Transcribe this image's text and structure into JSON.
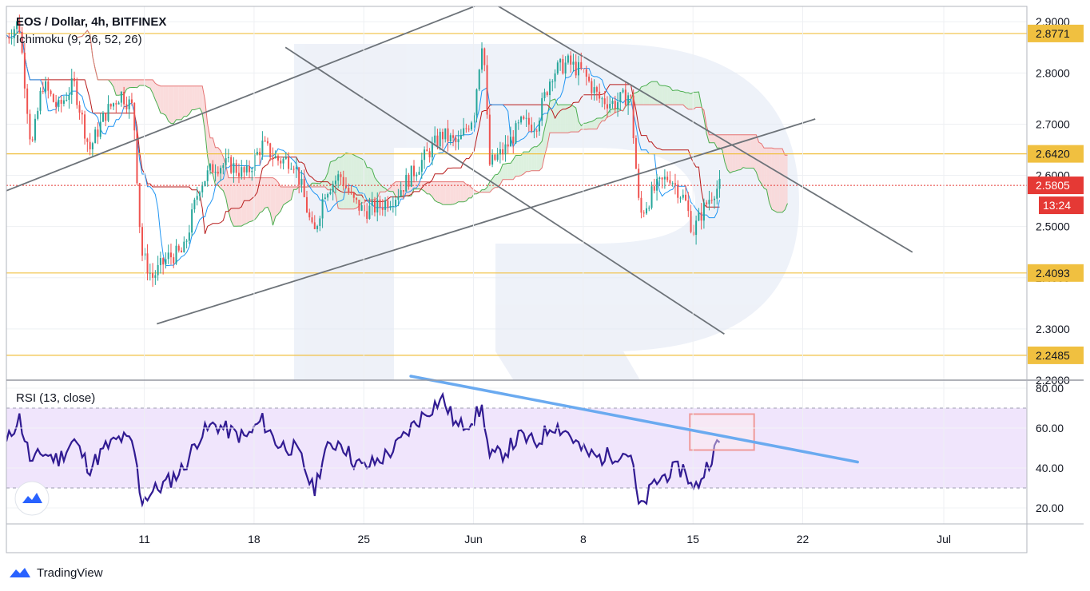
{
  "header": {
    "symbol_title": "EOS / Dollar, 4h, BITFINEX",
    "indicator_label": "Ichimoku (9, 26, 52, 26)"
  },
  "rsi": {
    "label": "RSI (13, close)"
  },
  "footer": {
    "brand": "TradingView"
  },
  "colors": {
    "up_candle": "#26a69a",
    "down_candle": "#ef5350",
    "level_line": "#f0c040",
    "current_price": "#e53935",
    "tenkan": "#2196f3",
    "kijun": "#b71c1c",
    "span_a": "#4caf50",
    "span_b": "#e57373",
    "rsi_line": "#311b92",
    "rsi_band": "#ede0fb",
    "trend_gray": "#6d7379",
    "rsi_trend": "#6aaaf0",
    "highlight_box": "#ef9a9a"
  },
  "chart_data": [
    {
      "type": "candlestick",
      "title": "EOS / Dollar, 4h, BITFINEX",
      "indicator": "Ichimoku (9, 26, 52, 26)",
      "ylim": [
        2.2,
        2.93
      ],
      "y_ticks": [
        "2.2000",
        "2.3000",
        "2.4000",
        "2.5000",
        "2.6000",
        "2.7000",
        "2.8000",
        "2.9000"
      ],
      "x_ticks": [
        {
          "label": "11",
          "day": 11
        },
        {
          "label": "18",
          "day": 18
        },
        {
          "label": "25",
          "day": 25
        },
        {
          "label": "Jun",
          "day": 32
        },
        {
          "label": "8",
          "day": 39
        },
        {
          "label": "15",
          "day": 46
        },
        {
          "label": "22",
          "day": 53
        },
        {
          "label": "Jul",
          "day": 62
        }
      ],
      "x_range_days": [
        2.2,
        67.3
      ],
      "levels": [
        {
          "label": "2.8771",
          "value": 2.8771
        },
        {
          "label": "2.6420",
          "value": 2.642
        },
        {
          "label": "2.4093",
          "value": 2.4093
        },
        {
          "label": "2.2485",
          "value": 2.2485
        }
      ],
      "current_price": {
        "label": "2.5805",
        "value": 2.5805,
        "countdown": "13:24"
      },
      "trendlines": [
        {
          "from": [
            2.2,
            2.57
          ],
          "to": [
            42.0,
            3.05
          ]
        },
        {
          "from": [
            11.8,
            2.31
          ],
          "to": [
            53.8,
            2.71
          ]
        },
        {
          "from": [
            20.0,
            2.85
          ],
          "to": [
            48.0,
            2.29
          ]
        },
        {
          "from": [
            27.0,
            3.05
          ],
          "to": [
            60.0,
            2.45
          ]
        }
      ],
      "price_path": [
        [
          2.2,
          2.87
        ],
        [
          3.0,
          2.9
        ],
        [
          3.8,
          2.65
        ],
        [
          4.5,
          2.78
        ],
        [
          5.5,
          2.73
        ],
        [
          6.5,
          2.78
        ],
        [
          7.5,
          2.65
        ],
        [
          8.5,
          2.72
        ],
        [
          9.5,
          2.76
        ],
        [
          10.3,
          2.73
        ],
        [
          10.8,
          2.45
        ],
        [
          11.5,
          2.4
        ],
        [
          12.5,
          2.44
        ],
        [
          13.5,
          2.45
        ],
        [
          14.5,
          2.58
        ],
        [
          15.5,
          2.62
        ],
        [
          16.5,
          2.62
        ],
        [
          17.5,
          2.6
        ],
        [
          18.5,
          2.66
        ],
        [
          19.5,
          2.63
        ],
        [
          20.5,
          2.63
        ],
        [
          21.0,
          2.58
        ],
        [
          21.8,
          2.48
        ],
        [
          22.5,
          2.57
        ],
        [
          23.5,
          2.6
        ],
        [
          24.3,
          2.55
        ],
        [
          25.0,
          2.53
        ],
        [
          26.0,
          2.54
        ],
        [
          27.0,
          2.56
        ],
        [
          28.0,
          2.6
        ],
        [
          29.0,
          2.64
        ],
        [
          30.0,
          2.68
        ],
        [
          31.0,
          2.66
        ],
        [
          32.0,
          2.72
        ],
        [
          32.6,
          2.88
        ],
        [
          33.0,
          2.62
        ],
        [
          34.0,
          2.65
        ],
        [
          35.0,
          2.7
        ],
        [
          36.0,
          2.7
        ],
        [
          37.0,
          2.8
        ],
        [
          38.0,
          2.82
        ],
        [
          39.0,
          2.8
        ],
        [
          40.0,
          2.75
        ],
        [
          41.0,
          2.74
        ],
        [
          42.0,
          2.76
        ],
        [
          42.6,
          2.52
        ],
        [
          43.5,
          2.57
        ],
        [
          44.5,
          2.6
        ],
        [
          45.5,
          2.55
        ],
        [
          46.0,
          2.49
        ],
        [
          46.6,
          2.53
        ],
        [
          47.3,
          2.57
        ],
        [
          47.8,
          2.58
        ]
      ]
    },
    {
      "type": "line",
      "title": "RSI (13, close)",
      "ylim": [
        12,
        84
      ],
      "y_ticks": [
        "20.00",
        "40.00",
        "60.00",
        "80.00"
      ],
      "band": [
        30,
        70
      ],
      "series": [
        {
          "name": "RSI",
          "values": [
            [
              2.2,
              52
            ],
            [
              3.0,
              66
            ],
            [
              3.8,
              42
            ],
            [
              4.5,
              48
            ],
            [
              5.5,
              44
            ],
            [
              6.5,
              54
            ],
            [
              7.5,
              40
            ],
            [
              8.5,
              50
            ],
            [
              9.5,
              55
            ],
            [
              10.3,
              52
            ],
            [
              10.8,
              24
            ],
            [
              11.5,
              28
            ],
            [
              12.5,
              33
            ],
            [
              13.5,
              40
            ],
            [
              14.5,
              56
            ],
            [
              15.5,
              62
            ],
            [
              16.5,
              58
            ],
            [
              17.5,
              55
            ],
            [
              18.5,
              64
            ],
            [
              19.5,
              52
            ],
            [
              20.5,
              50
            ],
            [
              21.0,
              45
            ],
            [
              21.8,
              28
            ],
            [
              22.5,
              48
            ],
            [
              23.5,
              54
            ],
            [
              24.3,
              44
            ],
            [
              25.0,
              40
            ],
            [
              26.0,
              44
            ],
            [
              27.0,
              50
            ],
            [
              28.0,
              60
            ],
            [
              29.0,
              68
            ],
            [
              30.0,
              75
            ],
            [
              31.0,
              60
            ],
            [
              32.0,
              65
            ],
            [
              32.6,
              70
            ],
            [
              33.0,
              45
            ],
            [
              34.0,
              48
            ],
            [
              35.0,
              56
            ],
            [
              36.0,
              52
            ],
            [
              37.0,
              62
            ],
            [
              38.0,
              58
            ],
            [
              39.0,
              48
            ],
            [
              40.0,
              45
            ],
            [
              41.0,
              47
            ],
            [
              42.0,
              48
            ],
            [
              42.6,
              18
            ],
            [
              43.5,
              32
            ],
            [
              44.5,
              38
            ],
            [
              45.5,
              40
            ],
            [
              46.0,
              28
            ],
            [
              46.6,
              36
            ],
            [
              47.3,
              48
            ],
            [
              47.8,
              54
            ]
          ]
        }
      ],
      "trendline": {
        "from": [
          28.0,
          86
        ],
        "to": [
          56.5,
          43
        ]
      },
      "highlight_box": {
        "days": [
          45.8,
          49.9
        ],
        "values": [
          49,
          67
        ]
      }
    }
  ]
}
